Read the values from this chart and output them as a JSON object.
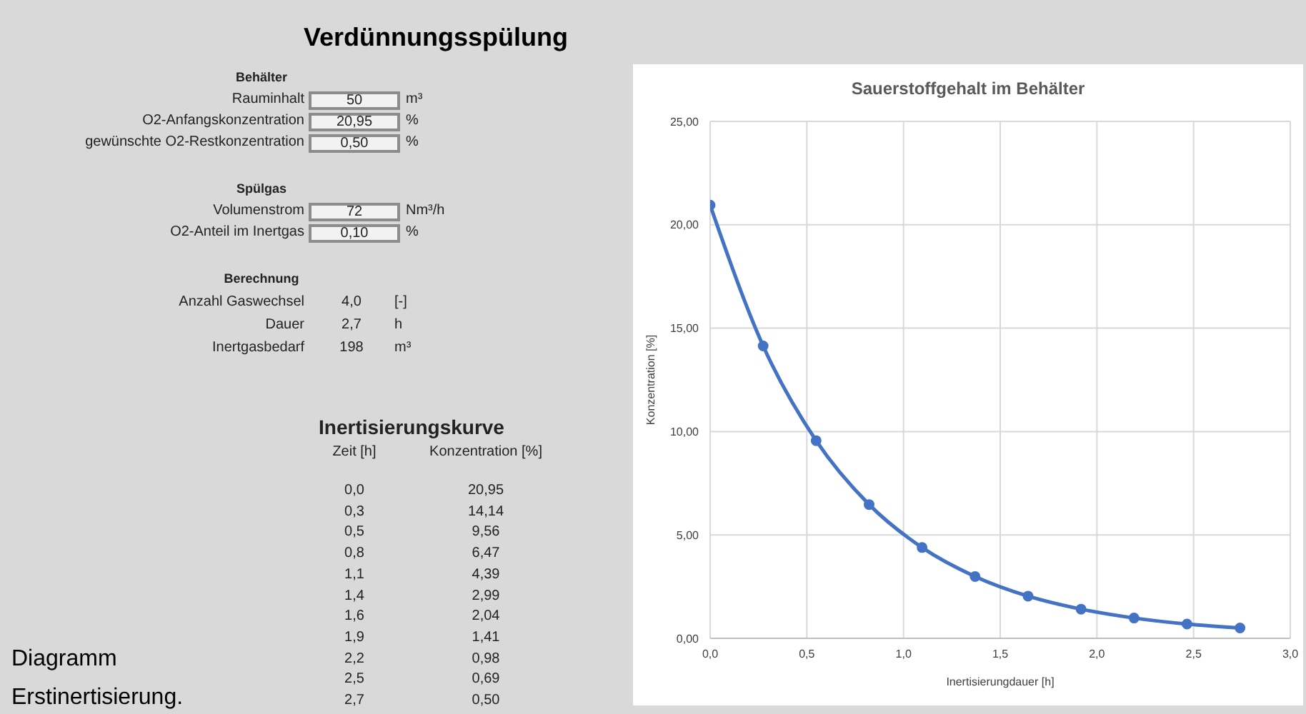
{
  "chart_data": [
    {
      "type": "other",
      "title": "Verdünnungsspülung",
      "annotations": [
        "Behälter",
        "Rauminhalt",
        "50",
        "m³",
        "O2-Anfangskonzentration",
        "20,95",
        "%",
        "gewünschte O2-Restkonzentration",
        "0,50",
        "%",
        "Spülgas",
        "Volumenstrom",
        "72",
        "Nm³/h",
        "O2-Anteil im Inertgas",
        "0,10",
        "%",
        "Berechnung",
        "Anzahl Gaswechsel",
        "4,0",
        "[-]",
        "Dauer",
        "2,7",
        "h",
        "Inertgasbedarf",
        "198",
        "m³",
        "Inertisierungskurve",
        "Zeit [h]",
        "Konzentration [%]",
        "0,0",
        "20,95",
        "0,3",
        "14,14",
        "0,5",
        "9,56",
        "0,8",
        "6,47",
        "1,1",
        "4,39",
        "1,4",
        "2,99",
        "1,6",
        "2,04",
        "1,9",
        "1,41",
        "2,2",
        "0,98",
        "2,5",
        "0,69",
        "2,7",
        "0,50",
        "Diagramm Erstinertisierung."
      ]
    },
    {
      "type": "line",
      "title": "Sauerstoffgehalt im Behälter",
      "xlabel": "Inertisierungdauer  [h]",
      "ylabel": "Konzentration  [%]",
      "x": [
        0,
        0.274,
        0.548,
        0.822,
        1.096,
        1.37,
        1.644,
        1.918,
        2.192,
        2.466,
        2.74
      ],
      "series": [
        {
          "color": "#4472c4",
          "values": [
            20.95,
            14.14,
            9.56,
            6.47,
            4.39,
            2.99,
            2.04,
            1.41,
            0.98,
            0.69,
            0.5
          ]
        }
      ],
      "xlim": [
        0,
        3
      ],
      "xticks": [
        {
          "value": 0,
          "label": "0,0"
        },
        {
          "value": 0.5,
          "label": "0,5"
        },
        {
          "value": 1,
          "label": "1,0"
        },
        {
          "value": 1.5,
          "label": "1,5"
        },
        {
          "value": 2,
          "label": "2,0"
        },
        {
          "value": 2.5,
          "label": "2,5"
        },
        {
          "value": 3,
          "label": "3,0"
        }
      ],
      "ylim": [
        0,
        25
      ],
      "yticks": [
        {
          "value": 0,
          "label": "0,00"
        },
        {
          "value": 5,
          "label": "5,00"
        },
        {
          "value": 10,
          "label": "10,00"
        },
        {
          "value": 15,
          "label": "15,00"
        },
        {
          "value": 20,
          "label": "20,00"
        },
        {
          "value": 25,
          "label": "25,00"
        }
      ],
      "grid": true,
      "marker": "circle",
      "line_style": "solid"
    }
  ]
}
